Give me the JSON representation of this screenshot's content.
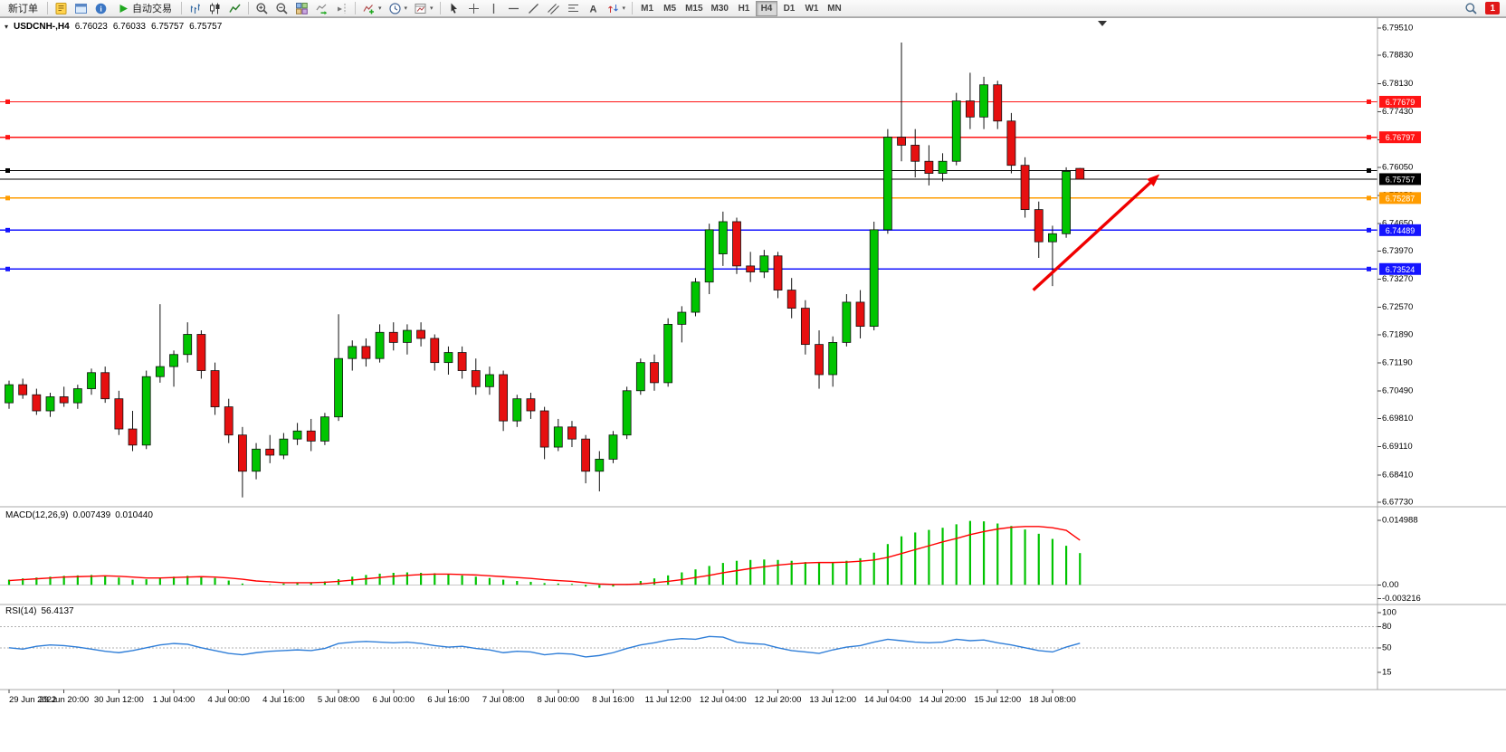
{
  "toolbar": {
    "new_order": "新订单",
    "auto_trading": "自动交易",
    "timeframes": [
      "M1",
      "M5",
      "M15",
      "M30",
      "H1",
      "H4",
      "D1",
      "W1",
      "MN"
    ],
    "active_timeframe": "H4",
    "notification_count": "1",
    "caret": "▾",
    "icons": {
      "left": [
        "editor-icon",
        "profiles-icon",
        "data-window-icon",
        "auto-trading-play-icon"
      ],
      "chart_tools": [
        "bar-chart-icon",
        "candlestick-chart-icon",
        "line-chart-icon",
        "zoom-in-icon",
        "zoom-out-icon",
        "tile-windows-icon",
        "auto-scroll-icon",
        "chart-shift-icon",
        "indicators-icon",
        "periods-icon",
        "templates-icon"
      ],
      "line_tools": [
        "cursor-icon",
        "crosshair-icon",
        "vertical-line-icon",
        "horizontal-line-icon",
        "trendline-icon",
        "channel-icon",
        "fibonacci-icon",
        "text-icon",
        "arrows-icon"
      ],
      "right": [
        "search-icon",
        "notification-badge"
      ]
    }
  },
  "chart_header": {
    "symbol": "USDCNH-,H4",
    "open": "6.76023",
    "high": "6.76033",
    "low": "6.75757",
    "close": "6.75757"
  },
  "chart_data": [
    {
      "type": "candlestick",
      "symbol": "USDCNH-",
      "timeframe": "H4",
      "ylim": [
        6.6773,
        6.7951
      ],
      "up_color": "#00c400",
      "down_color": "#e61010",
      "y_ticks": [
        "6.79510",
        "6.78830",
        "6.78130",
        "6.77430",
        "6.76730",
        "6.76050",
        "6.75350",
        "6.74650",
        "6.73970",
        "6.73270",
        "6.72570",
        "6.71890",
        "6.71190",
        "6.70490",
        "6.69810",
        "6.69110",
        "6.68410",
        "6.67730"
      ],
      "x_labels": [
        "29 Jun 2022",
        "29 Jun 20:00",
        "30 Jun 12:00",
        "1 Jul 04:00",
        "4 Jul 00:00",
        "4 Jul 16:00",
        "5 Jul 08:00",
        "6 Jul 00:00",
        "6 Jul 16:00",
        "7 Jul 08:00",
        "8 Jul 00:00",
        "8 Jul 16:00",
        "11 Jul 12:00",
        "12 Jul 04:00",
        "12 Jul 20:00",
        "13 Jul 12:00",
        "14 Jul 04:00",
        "14 Jul 20:00",
        "15 Jul 12:00",
        "18 Jul 08:00"
      ],
      "candles_ohlc": [
        [
          6.702,
          6.7075,
          6.7005,
          6.7065
        ],
        [
          6.7065,
          6.708,
          6.703,
          6.704
        ],
        [
          6.704,
          6.7055,
          6.699,
          6.7
        ],
        [
          6.7,
          6.7045,
          6.6985,
          6.7035
        ],
        [
          6.7035,
          6.706,
          6.701,
          6.702
        ],
        [
          6.702,
          6.7065,
          6.7005,
          6.7055
        ],
        [
          6.7055,
          6.7105,
          6.704,
          6.7095
        ],
        [
          6.7095,
          6.711,
          6.702,
          6.703
        ],
        [
          6.703,
          6.705,
          6.694,
          6.6955
        ],
        [
          6.6955,
          6.7,
          6.69,
          6.6915
        ],
        [
          6.6915,
          6.71,
          6.6905,
          6.7085
        ],
        [
          6.7085,
          6.7265,
          6.707,
          6.711
        ],
        [
          6.711,
          6.715,
          6.706,
          6.714
        ],
        [
          6.714,
          6.722,
          6.712,
          6.719
        ],
        [
          6.719,
          6.72,
          6.708,
          6.71
        ],
        [
          6.71,
          6.712,
          6.699,
          6.701
        ],
        [
          6.701,
          6.703,
          6.692,
          6.694
        ],
        [
          6.694,
          6.696,
          6.6785,
          6.685
        ],
        [
          6.685,
          6.692,
          6.683,
          6.6905
        ],
        [
          6.6905,
          6.694,
          6.687,
          6.689
        ],
        [
          6.689,
          6.6945,
          6.688,
          6.693
        ],
        [
          6.693,
          6.697,
          6.6915,
          6.695
        ],
        [
          6.695,
          6.698,
          6.69,
          6.6925
        ],
        [
          6.6925,
          6.6995,
          6.6915,
          6.6985
        ],
        [
          6.6985,
          6.724,
          6.6975,
          6.713
        ],
        [
          6.713,
          6.7175,
          6.71,
          6.716
        ],
        [
          6.716,
          6.718,
          6.711,
          6.713
        ],
        [
          6.713,
          6.7215,
          6.712,
          6.7195
        ],
        [
          6.7195,
          6.722,
          6.715,
          6.717
        ],
        [
          6.717,
          6.7215,
          6.714,
          6.72
        ],
        [
          6.72,
          6.722,
          6.716,
          6.718
        ],
        [
          6.718,
          6.719,
          6.71,
          6.712
        ],
        [
          6.712,
          6.716,
          6.709,
          6.7145
        ],
        [
          6.7145,
          6.716,
          6.708,
          6.71
        ],
        [
          6.71,
          6.713,
          6.704,
          6.706
        ],
        [
          6.706,
          6.711,
          6.704,
          6.709
        ],
        [
          6.709,
          6.71,
          6.695,
          6.6975
        ],
        [
          6.6975,
          6.704,
          6.696,
          6.703
        ],
        [
          6.703,
          6.7045,
          6.698,
          6.7
        ],
        [
          6.7,
          6.701,
          6.688,
          6.691
        ],
        [
          6.691,
          6.698,
          6.69,
          6.696
        ],
        [
          6.696,
          6.6975,
          6.691,
          6.693
        ],
        [
          6.693,
          6.694,
          6.682,
          6.685
        ],
        [
          6.685,
          6.69,
          6.68,
          6.688
        ],
        [
          6.688,
          6.695,
          6.687,
          6.694
        ],
        [
          6.694,
          6.706,
          6.693,
          6.705
        ],
        [
          6.705,
          6.713,
          6.704,
          6.712
        ],
        [
          6.712,
          6.714,
          6.705,
          6.707
        ],
        [
          6.707,
          6.723,
          6.706,
          6.7215
        ],
        [
          6.7215,
          6.726,
          6.717,
          6.7245
        ],
        [
          6.7245,
          6.733,
          6.7235,
          6.732
        ],
        [
          6.732,
          6.7465,
          6.729,
          6.745
        ],
        [
          6.739,
          6.7495,
          6.736,
          6.747
        ],
        [
          6.747,
          6.748,
          6.734,
          6.736
        ],
        [
          6.736,
          6.7395,
          6.732,
          6.7345
        ],
        [
          6.7345,
          6.74,
          6.733,
          6.7385
        ],
        [
          6.7385,
          6.7395,
          6.728,
          6.73
        ],
        [
          6.73,
          6.733,
          6.723,
          6.7255
        ],
        [
          6.7255,
          6.7275,
          6.714,
          6.7165
        ],
        [
          6.7165,
          6.72,
          6.7055,
          6.709
        ],
        [
          6.709,
          6.7185,
          6.706,
          6.717
        ],
        [
          6.717,
          6.729,
          6.716,
          6.727
        ],
        [
          6.727,
          6.73,
          6.718,
          6.721
        ],
        [
          6.721,
          6.747,
          6.72,
          6.745
        ],
        [
          6.745,
          6.77,
          6.744,
          6.768
        ],
        [
          6.768,
          6.7915,
          6.762,
          6.766
        ],
        [
          6.766,
          6.77,
          6.758,
          6.762
        ],
        [
          6.762,
          6.766,
          6.756,
          6.759
        ],
        [
          6.759,
          6.764,
          6.757,
          6.762
        ],
        [
          6.762,
          6.779,
          6.761,
          6.777
        ],
        [
          6.777,
          6.784,
          6.77,
          6.773
        ],
        [
          6.773,
          6.783,
          6.77,
          6.781
        ],
        [
          6.781,
          6.782,
          6.77,
          6.772
        ],
        [
          6.772,
          6.774,
          6.759,
          6.761
        ],
        [
          6.761,
          6.763,
          6.748,
          6.75
        ],
        [
          6.75,
          6.752,
          6.738,
          6.742
        ],
        [
          6.742,
          6.746,
          6.731,
          6.744
        ],
        [
          6.744,
          6.7605,
          6.743,
          6.7595
        ],
        [
          6.76023,
          6.76033,
          6.75757,
          6.75757
        ]
      ],
      "hlines": [
        {
          "price": 6.77679,
          "label": "6.77679",
          "color": "#ff1414",
          "kind": "resistance"
        },
        {
          "price": 6.76797,
          "label": "6.76797",
          "color": "#ff1414",
          "kind": "resistance"
        },
        {
          "price": 6.7597,
          "label": "",
          "color": "#000000",
          "kind": "level"
        },
        {
          "price": 6.75757,
          "label": "6.75757",
          "color": "#000000",
          "kind": "current-price"
        },
        {
          "price": 6.75287,
          "label": "6.75287",
          "color": "#ff9c00",
          "kind": "level"
        },
        {
          "price": 6.74489,
          "label": "6.74489",
          "color": "#1414ff",
          "kind": "support"
        },
        {
          "price": 6.73524,
          "label": "6.73524",
          "color": "#1414ff",
          "kind": "support"
        }
      ],
      "trend_arrow": {
        "from": {
          "index": 74.6,
          "price": 6.73
        },
        "to": {
          "index": 83.8,
          "price": 6.7588
        },
        "color": "#f00000"
      }
    },
    {
      "type": "bar",
      "name_label": "MACD(12,26,9)",
      "value_main": "0.007439",
      "value_signal": "0.010440",
      "bar_color": "#00c400",
      "signal_color": "#ff0000",
      "y_ticks": [
        {
          "v": 0.014988,
          "label": "0.014988"
        },
        {
          "v": 0,
          "label": "0.00"
        },
        {
          "v": -0.003216,
          "label": "-0.003216"
        }
      ],
      "values": [
        0.0012,
        0.0015,
        0.0017,
        0.0019,
        0.0021,
        0.0022,
        0.0023,
        0.0021,
        0.0017,
        0.0012,
        0.0013,
        0.0016,
        0.0019,
        0.0021,
        0.002,
        0.0016,
        0.001,
        0.0003,
        0.0,
        0.0001,
        0.0003,
        0.0005,
        0.0006,
        0.0008,
        0.0013,
        0.0019,
        0.0023,
        0.0026,
        0.0028,
        0.0029,
        0.0028,
        0.0027,
        0.0025,
        0.0022,
        0.0019,
        0.0016,
        0.0012,
        0.0009,
        0.0007,
        0.0004,
        0.0003,
        0.0002,
        -0.0004,
        -0.0007,
        -0.0004,
        0.0002,
        0.0009,
        0.0015,
        0.0022,
        0.0029,
        0.0036,
        0.0044,
        0.0051,
        0.0056,
        0.0058,
        0.0059,
        0.0058,
        0.0056,
        0.0053,
        0.0051,
        0.0052,
        0.0056,
        0.0062,
        0.0075,
        0.0095,
        0.0113,
        0.0122,
        0.0128,
        0.0133,
        0.0141,
        0.0149,
        0.0148,
        0.0143,
        0.0137,
        0.0129,
        0.0119,
        0.0107,
        0.0091,
        0.0074
      ],
      "signal": [
        0.001,
        0.0012,
        0.0014,
        0.0016,
        0.0018,
        0.0019,
        0.002,
        0.0021,
        0.002,
        0.0018,
        0.0016,
        0.0016,
        0.0017,
        0.0018,
        0.0019,
        0.0018,
        0.0016,
        0.0013,
        0.0009,
        0.0007,
        0.0005,
        0.0005,
        0.0005,
        0.0006,
        0.0008,
        0.0011,
        0.0014,
        0.0017,
        0.002,
        0.0022,
        0.0024,
        0.0025,
        0.0025,
        0.0024,
        0.0023,
        0.0021,
        0.0019,
        0.0017,
        0.0015,
        0.0012,
        0.001,
        0.0008,
        0.0005,
        0.0002,
        0.0001,
        0.0001,
        0.0002,
        0.0005,
        0.0008,
        0.0012,
        0.0017,
        0.0022,
        0.0028,
        0.0033,
        0.0038,
        0.0042,
        0.0046,
        0.0049,
        0.0051,
        0.0052,
        0.0052,
        0.0053,
        0.0055,
        0.0058,
        0.0064,
        0.0073,
        0.0082,
        0.0091,
        0.01,
        0.0108,
        0.0117,
        0.0124,
        0.013,
        0.0134,
        0.0136,
        0.0136,
        0.0133,
        0.0127,
        0.0104
      ]
    },
    {
      "type": "line",
      "name_label": "RSI(14)",
      "value": "56.4137",
      "line_color": "#2f7ed8",
      "levels": [
        80,
        50
      ],
      "y_ticks": [
        {
          "v": 100,
          "label": "100"
        },
        {
          "v": 80,
          "label": "80"
        },
        {
          "v": 50,
          "label": "50"
        },
        {
          "v": 15,
          "label": "15"
        }
      ],
      "values": [
        50,
        48,
        52,
        54,
        53,
        51,
        48,
        45,
        43,
        46,
        50,
        54,
        56,
        55,
        50,
        46,
        42,
        40,
        43,
        45,
        46,
        47,
        46,
        49,
        56,
        58,
        59,
        58,
        57,
        58,
        56,
        53,
        51,
        52,
        49,
        47,
        43,
        45,
        44,
        40,
        42,
        41,
        37,
        39,
        43,
        49,
        54,
        57,
        61,
        63,
        62,
        66,
        65,
        58,
        56,
        55,
        50,
        46,
        44,
        42,
        47,
        51,
        53,
        58,
        62,
        60,
        58,
        57,
        58,
        62,
        60,
        61,
        57,
        54,
        50,
        46,
        44,
        51,
        56.4
      ]
    }
  ]
}
